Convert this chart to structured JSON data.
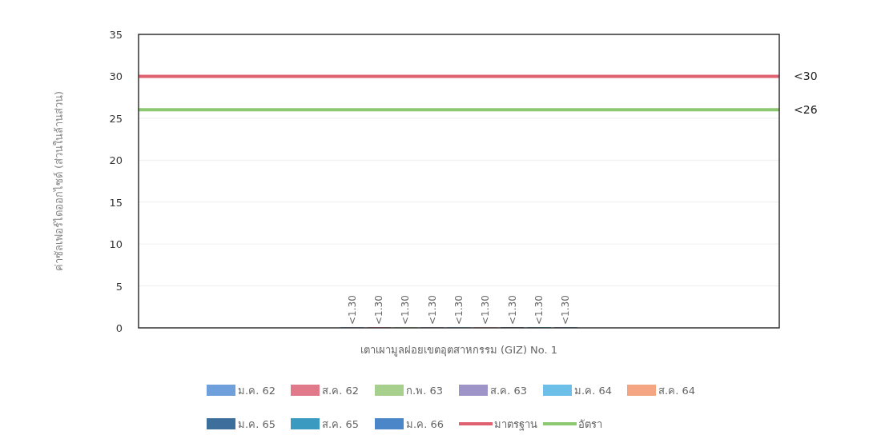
{
  "chart_data": {
    "type": "bar",
    "ylabel": "ค่าซัลเฟอร์ไดออกไซด์ (ส่วนในล้านส่วน)",
    "categories": [
      "เตาเผามูลฝอยเขตอุตสาหกรรม (GIZ) No. 1"
    ],
    "ylim": [
      0,
      35
    ],
    "yticks": [
      0,
      5,
      10,
      15,
      20,
      25,
      30,
      35
    ],
    "grid": "y",
    "legend": "bottom",
    "series": [
      {
        "name": "ม.ค. 62",
        "color": "#6fa0dc",
        "values": [
          0
        ],
        "value_labels": [
          "<1.30"
        ]
      },
      {
        "name": "ส.ค. 62",
        "color": "#e07a8a",
        "values": [
          0
        ],
        "value_labels": [
          "<1.30"
        ]
      },
      {
        "name": "ก.พ. 63",
        "color": "#a8d08d",
        "values": [
          0
        ],
        "value_labels": [
          "<1.30"
        ]
      },
      {
        "name": "ส.ค. 63",
        "color": "#9e94c8",
        "values": [
          0
        ],
        "value_labels": [
          "<1.30"
        ]
      },
      {
        "name": "ม.ค. 64",
        "color": "#6cc0e8",
        "values": [
          0
        ],
        "value_labels": [
          "<1.30"
        ]
      },
      {
        "name": "ส.ค. 64",
        "color": "#f4a582",
        "values": [
          0
        ],
        "value_labels": [
          "<1.30"
        ]
      },
      {
        "name": "ม.ค. 65",
        "color": "#3d6e9c",
        "values": [
          0
        ],
        "value_labels": [
          "<1.30"
        ]
      },
      {
        "name": "ส.ค. 65",
        "color": "#3a9abf",
        "values": [
          0
        ],
        "value_labels": [
          "<1.30"
        ]
      },
      {
        "name": "ม.ค. 66",
        "color": "#4a86c8",
        "values": [
          0
        ],
        "value_labels": [
          "<1.30"
        ]
      }
    ],
    "ref_lines": [
      {
        "axis": "y",
        "value": 30,
        "label": "มาตรฐาน",
        "color": "#e06070"
      },
      {
        "axis": "y",
        "value": 26,
        "label": "อัตรา",
        "color": "#8cc870"
      }
    ],
    "annotations": [
      "<30",
      "<26"
    ]
  }
}
